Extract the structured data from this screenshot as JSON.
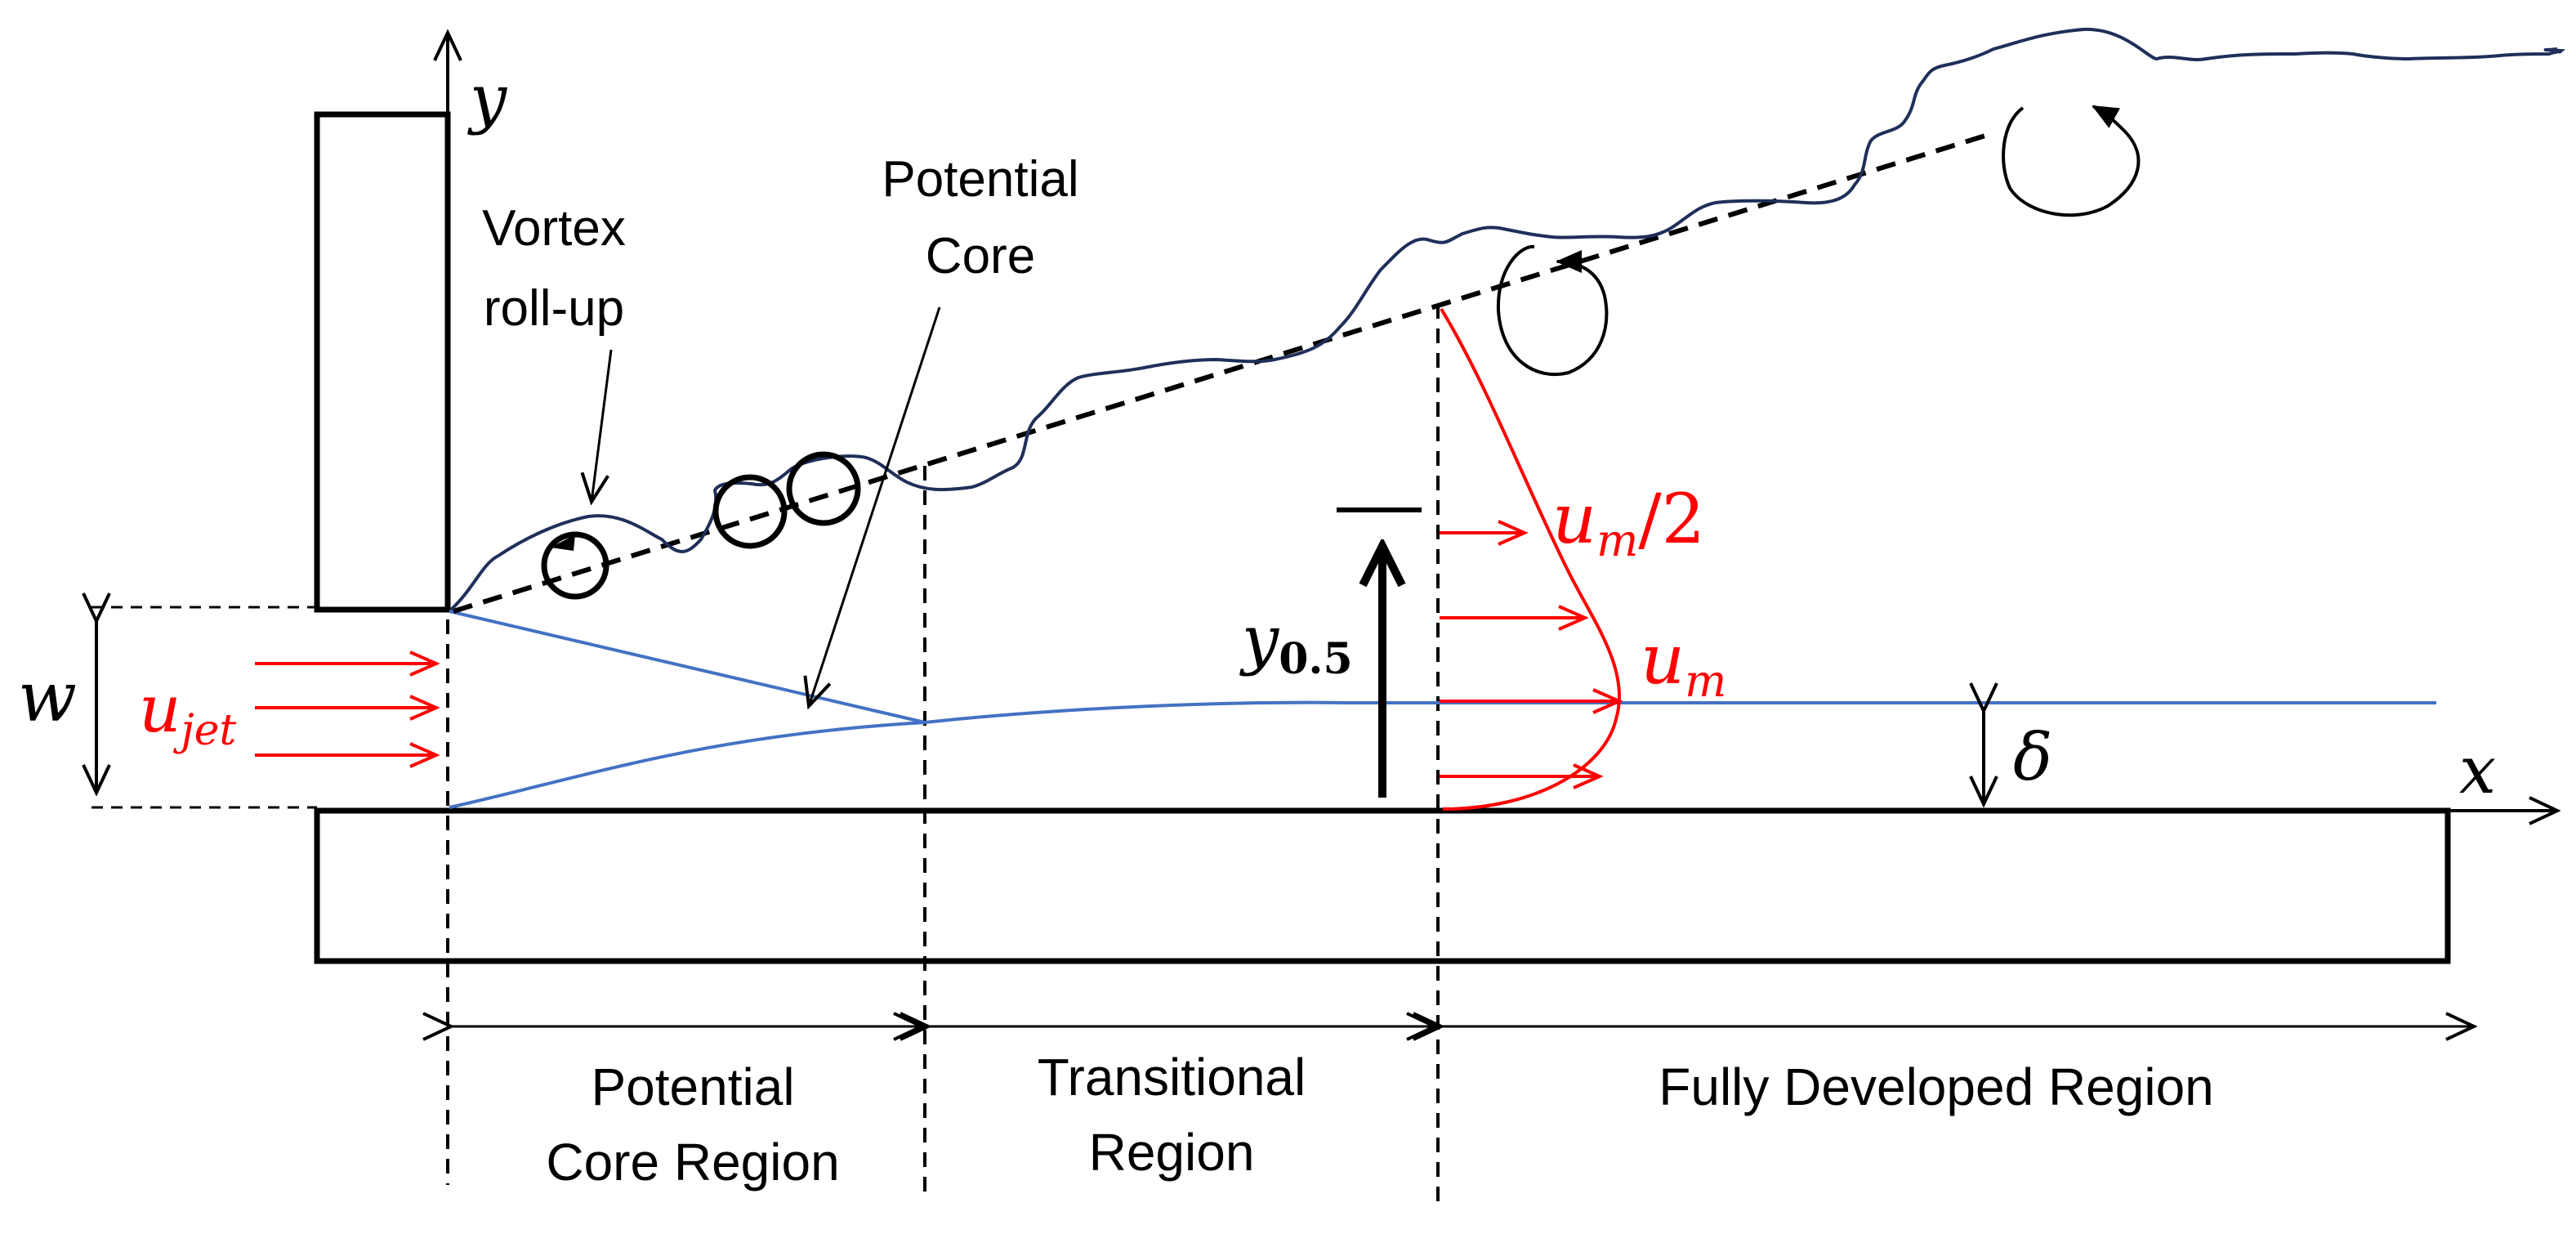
{
  "labels": {
    "axis_y": "y",
    "axis_x": "x",
    "vortex_rollup_line1": "Vortex",
    "vortex_rollup_line2": "roll-up",
    "potential_core_line1": "Potential",
    "potential_core_line2": "Core",
    "w": "w",
    "u_jet_base": "u",
    "u_jet_sub": "jet",
    "y_half_base": "y",
    "y_half_sub": "0.5",
    "um_half_base": "u",
    "um_half_sub": "m",
    "um_half_suffix": "/2",
    "um_base": "u",
    "um_sub": "m",
    "delta": "δ",
    "region1_line1": "Potential",
    "region1_line2": "Core Region",
    "region2_line1": "Transitional",
    "region2_line2": "Region",
    "region3": "Fully Developed Region"
  },
  "colors": {
    "red": "#ff0000",
    "blue": "#4472c4",
    "navy": "#1f2f5a",
    "black": "#000000"
  }
}
